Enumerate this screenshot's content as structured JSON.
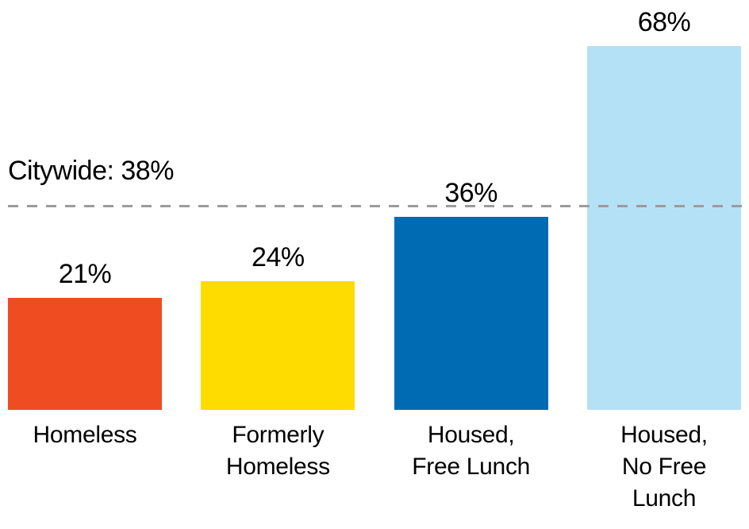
{
  "chart_data": {
    "type": "bar",
    "title": "",
    "categories": [
      "Homeless",
      "Formerly Homeless",
      "Housed, Free Lunch",
      "Housed, No Free Lunch"
    ],
    "category_lines": [
      [
        "Homeless"
      ],
      [
        "Formerly",
        "Homeless"
      ],
      [
        "Housed,",
        "Free Lunch"
      ],
      [
        "Housed,",
        "No Free",
        "Lunch"
      ]
    ],
    "values": [
      21,
      24,
      36,
      68
    ],
    "value_labels": [
      "21%",
      "24%",
      "36%",
      "68%"
    ],
    "unit": "%",
    "bar_colors": [
      "#F04C22",
      "#FFDC00",
      "#006BB3",
      "#B5E1F7"
    ],
    "guide_line": {
      "label": "Citywide: 38%",
      "value": 38,
      "style": "dashed",
      "color": "#9B9B9B"
    },
    "ylim": [
      0,
      77
    ],
    "grid": false,
    "legend": "none",
    "xlabel": "",
    "ylabel": "",
    "text_color": "#000000",
    "background_color": "#FFFFFF"
  }
}
